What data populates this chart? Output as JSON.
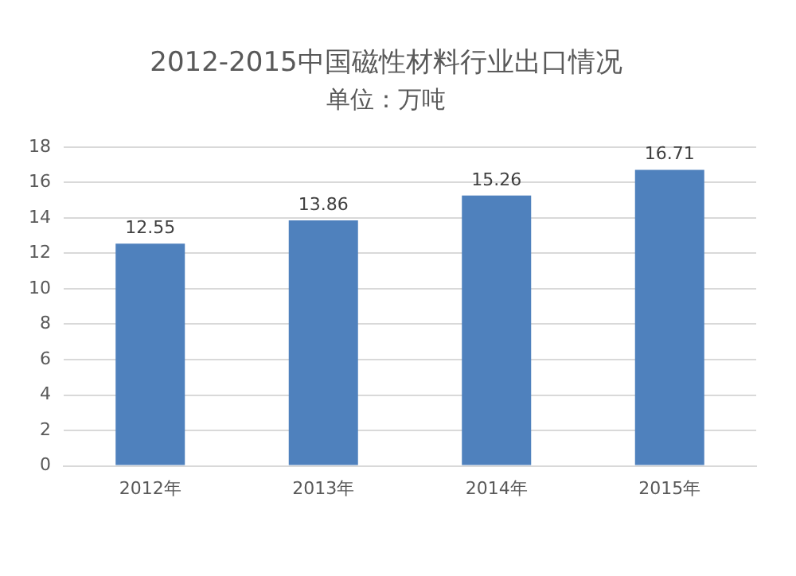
{
  "chart_data": {
    "type": "bar",
    "title": "2012-2015中国磁性材料行业出口情况",
    "subtitle": "单位：万吨",
    "categories": [
      "2012年",
      "2013年",
      "2014年",
      "2015年"
    ],
    "values": [
      12.55,
      13.86,
      15.26,
      16.71
    ],
    "color": "#4f81bd",
    "ylim": [
      0,
      18
    ],
    "yticks": [
      0,
      2,
      4,
      6,
      8,
      10,
      12,
      14,
      16,
      18
    ],
    "grid": "y",
    "data_labels": true,
    "legend": false
  }
}
